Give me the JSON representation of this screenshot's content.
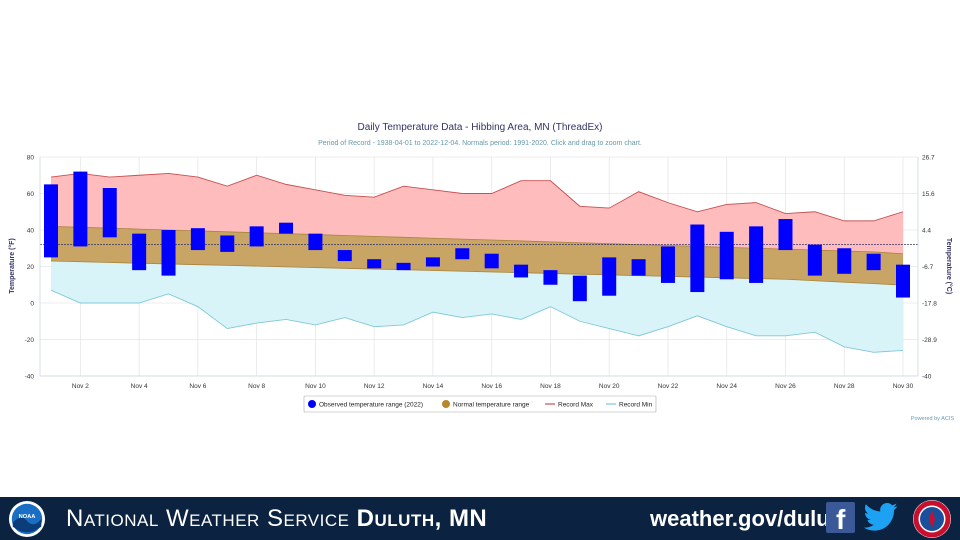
{
  "chart_data": {
    "type": "bar",
    "title": "Daily Temperature Data - Hibbing Area, MN (ThreadEx)",
    "subtitle": "Period of Record - 1938-04-01 to 2022-12-04. Normals period: 1991-2020. Click and drag to zoom chart.",
    "ylabel_left": "Temperature (°F)",
    "ylabel_right": "Temperature (°C)",
    "ylim": [
      -40,
      80
    ],
    "y_ticks_left": [
      "80",
      "60",
      "40",
      "20",
      "0",
      "-20",
      "-40"
    ],
    "y_ticks_right": [
      "26.7",
      "15.6",
      "4.4",
      "-6.7",
      "-17.8",
      "-28.9",
      "-40"
    ],
    "x_tick_labels": [
      "Nov 2",
      "Nov 4",
      "Nov 6",
      "Nov 8",
      "Nov 10",
      "Nov 12",
      "Nov 14",
      "Nov 16",
      "Nov 18",
      "Nov 20",
      "Nov 22",
      "Nov 24",
      "Nov 26",
      "Nov 28",
      "Nov 30"
    ],
    "days": [
      1,
      2,
      3,
      4,
      5,
      6,
      7,
      8,
      9,
      10,
      11,
      12,
      13,
      14,
      15,
      16,
      17,
      18,
      19,
      20,
      21,
      22,
      23,
      24,
      25,
      26,
      27,
      28,
      29,
      30
    ],
    "observed": {
      "name": "Observed temperature range (2022)",
      "high": [
        65,
        72,
        63,
        38,
        40,
        41,
        37,
        42,
        44,
        38,
        29,
        24,
        22,
        25,
        30,
        27,
        21,
        18,
        15,
        25,
        24,
        31,
        43,
        39,
        42,
        46,
        32,
        30,
        27,
        21
      ],
      "low": [
        25,
        31,
        36,
        18,
        15,
        29,
        28,
        31,
        38,
        29,
        23,
        19,
        18,
        20,
        24,
        19,
        14,
        10,
        1,
        4,
        15,
        11,
        6,
        13,
        11,
        29,
        15,
        16,
        18,
        3
      ]
    },
    "normal": {
      "name": "Normal temperature range",
      "high": [
        42,
        41.5,
        41,
        40.5,
        40,
        39.5,
        39,
        38.5,
        38,
        37.5,
        37,
        36.5,
        36,
        35.5,
        35,
        34.5,
        34,
        33.5,
        33,
        32.5,
        32,
        31.5,
        31,
        30.5,
        30,
        29.5,
        29,
        28.5,
        28,
        27
      ],
      "low": [
        23,
        22.6,
        22.2,
        21.8,
        21.4,
        21,
        20.6,
        20.2,
        19.8,
        19.4,
        19,
        18.6,
        18.2,
        17.8,
        17.4,
        17,
        16.6,
        16.2,
        15.8,
        15.4,
        15,
        14.6,
        14.2,
        13.8,
        13.4,
        13,
        12.2,
        11.4,
        10.6,
        9.8
      ]
    },
    "record_max": {
      "name": "Record Max",
      "values": [
        69,
        71,
        69,
        70,
        71,
        69,
        64,
        70,
        65,
        62,
        59,
        58,
        64,
        62,
        60,
        60,
        67,
        67,
        53,
        52,
        61,
        55,
        50,
        54,
        55,
        49,
        50,
        45,
        45,
        50
      ]
    },
    "record_min": {
      "name": "Record Min",
      "values": [
        7,
        0,
        0,
        0,
        5,
        -2,
        -14,
        -11,
        -9,
        -12,
        -8,
        -13,
        -12,
        -5,
        -8,
        -6,
        -9,
        -2,
        -10,
        -14,
        -18,
        -13,
        -7,
        -13,
        -18,
        -18,
        -16,
        -24,
        -27,
        -26
      ]
    },
    "reference_line": 32,
    "legend_position": "bottom",
    "credit": "Powered by ACIS",
    "colors": {
      "observed": "#0000ff",
      "normal_fill": "#c8a465",
      "record_max_fill": "#ffbcbc",
      "record_max_line": "#c85050",
      "record_min_fill": "#d8f4f8",
      "record_min_line": "#80c8d8",
      "grid": "#e6e6e6",
      "title": "#333366",
      "subtitle": "#6699aa"
    }
  },
  "footer": {
    "agency_prefix": "National Weather Service",
    "office": "Duluth, MN",
    "url": "weather.gov/duluth",
    "noaa_logo_text": "NOAA",
    "background": "#0b2240"
  }
}
